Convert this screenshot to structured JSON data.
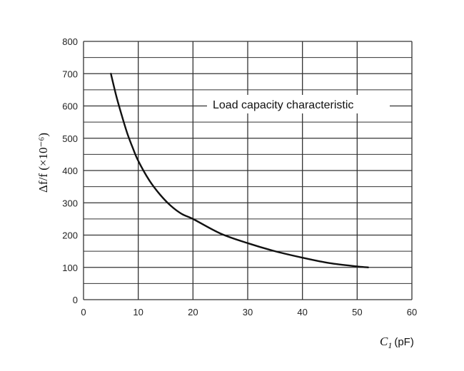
{
  "chart_data": {
    "type": "line",
    "title": "",
    "annotation": "Load capacity characteristic",
    "ylabel": "Δf/f (×10⁻⁶)",
    "xlabel_symbol": "C",
    "xlabel_subscript": "1",
    "xlabel_unit": "(pF)",
    "xlim": [
      0,
      60
    ],
    "ylim": [
      0,
      800
    ],
    "x_ticks": [
      "0",
      "10",
      "20",
      "30",
      "40",
      "50",
      "60"
    ],
    "y_ticks": [
      "0",
      "100",
      "200",
      "300",
      "400",
      "500",
      "600",
      "700",
      "800"
    ],
    "grid": true,
    "minor_grid_y_step": 50,
    "series": [
      {
        "name": "",
        "x": [
          5,
          6,
          7,
          8,
          9,
          10,
          12,
          14,
          16,
          18,
          20,
          25,
          30,
          35,
          40,
          45,
          50,
          52
        ],
        "y": [
          700,
          630,
          570,
          515,
          470,
          430,
          370,
          325,
          290,
          265,
          250,
          205,
          175,
          150,
          130,
          113,
          103,
          100
        ]
      }
    ],
    "colors": {
      "grid": "#333333",
      "line": "#111111"
    }
  }
}
